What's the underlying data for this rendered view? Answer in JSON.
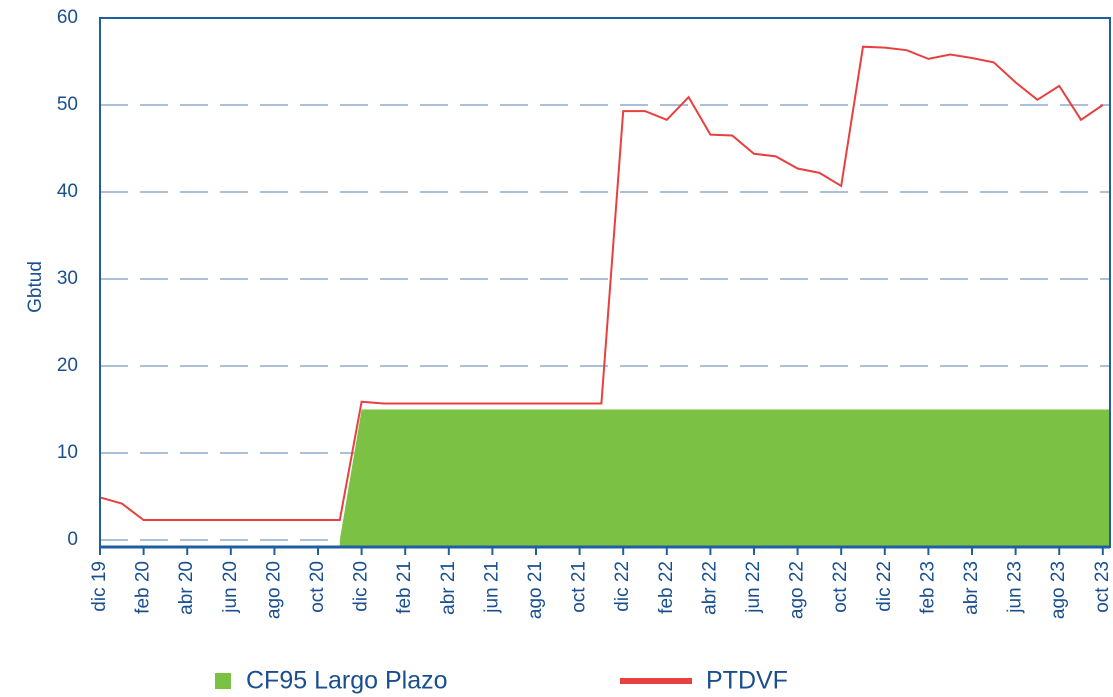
{
  "chart_data": {
    "type": "line",
    "y_label": "Gbtud",
    "categories": [
      "dic 19",
      null,
      "feb 20",
      null,
      "abr 20",
      null,
      "jun 20",
      null,
      "ago 20",
      null,
      "oct 20",
      null,
      "dic 20",
      null,
      "feb 21",
      null,
      "abr 21",
      null,
      "jun 21",
      null,
      "ago 21",
      null,
      "oct 21",
      null,
      "dic 22",
      null,
      "feb 22",
      null,
      "abr 22",
      null,
      "jun 22",
      null,
      "ago 22",
      null,
      "oct 22",
      null,
      "dic 22",
      null,
      "feb 23",
      null,
      "abr 23",
      null,
      "jun 23",
      null,
      "ago 23",
      null,
      "oct 23"
    ],
    "series": [
      {
        "name": "CF95 Largo Plazo",
        "color": "#7bc143",
        "style": "area",
        "values": [
          null,
          null,
          null,
          null,
          null,
          null,
          null,
          null,
          null,
          null,
          null,
          0,
          15,
          15,
          15,
          15,
          15,
          15,
          15,
          15,
          15,
          15,
          15,
          15,
          15,
          15,
          15,
          15,
          15,
          15,
          15,
          15,
          15,
          15,
          15,
          15,
          15,
          15,
          15,
          15,
          15,
          15,
          15,
          15,
          15,
          15,
          15
        ]
      },
      {
        "name": "PTDVF",
        "color": "#e8403f",
        "style": "line",
        "values": [
          4.9,
          4.2,
          2.3,
          2.3,
          2.3,
          2.3,
          2.3,
          2.3,
          2.3,
          2.3,
          2.3,
          2.3,
          15.9,
          15.7,
          15.7,
          15.7,
          15.7,
          15.7,
          15.7,
          15.7,
          15.7,
          15.7,
          15.7,
          15.7,
          49.3,
          49.3,
          48.3,
          50.9,
          46.6,
          46.5,
          44.4,
          44.1,
          42.7,
          42.2,
          40.7,
          56.7,
          56.6,
          56.3,
          55.3,
          55.8,
          55.4,
          54.9,
          52.6,
          50.6,
          52.2,
          48.3,
          50.0
        ]
      }
    ],
    "ylim": [
      -0.8,
      60
    ],
    "yticks": [
      0,
      10,
      20,
      30,
      40,
      50,
      60
    ],
    "grid": true
  }
}
